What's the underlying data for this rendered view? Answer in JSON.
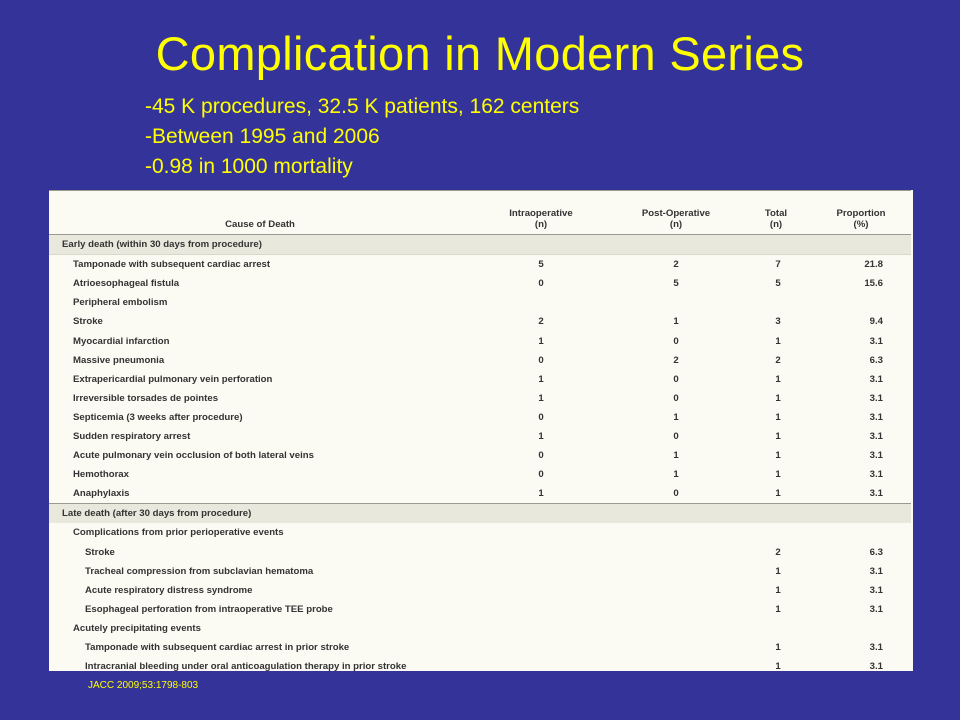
{
  "title": "Complication in Modern Series",
  "bullets": [
    "-45 K procedures, 32.5 K patients, 162 centers",
    "-Between 1995 and 2006",
    "-0.98 in 1000 mortality"
  ],
  "table": {
    "headers": {
      "cause": "Cause of Death",
      "intra": "Intraoperative",
      "intra_unit": "(n)",
      "post": "Post-Operative",
      "post_unit": "(n)",
      "total": "Total",
      "total_unit": "(n)",
      "prop": "Proportion",
      "prop_unit": "(%)"
    },
    "early_section": "Early death (within 30 days from procedure)",
    "early_rows": [
      {
        "label": "Tamponade with subsequent cardiac arrest",
        "intra": "5",
        "post": "2",
        "total": "7",
        "prop": "21.8"
      },
      {
        "label": "Atrioesophageal fistula",
        "intra": "0",
        "post": "5",
        "total": "5",
        "prop": "15.6"
      },
      {
        "label": "Peripheral embolism",
        "intra": "",
        "post": "",
        "total": "",
        "prop": ""
      },
      {
        "label": "Stroke",
        "intra": "2",
        "post": "1",
        "total": "3",
        "prop": "9.4"
      },
      {
        "label": "Myocardial infarction",
        "intra": "1",
        "post": "0",
        "total": "1",
        "prop": "3.1"
      },
      {
        "label": "Massive pneumonia",
        "intra": "0",
        "post": "2",
        "total": "2",
        "prop": "6.3"
      },
      {
        "label": "Extrapericardial pulmonary vein perforation",
        "intra": "1",
        "post": "0",
        "total": "1",
        "prop": "3.1"
      },
      {
        "label": "Irreversible torsades de pointes",
        "intra": "1",
        "post": "0",
        "total": "1",
        "prop": "3.1"
      },
      {
        "label": "Septicemia (3 weeks after procedure)",
        "intra": "0",
        "post": "1",
        "total": "1",
        "prop": "3.1"
      },
      {
        "label": "Sudden respiratory arrest",
        "intra": "1",
        "post": "0",
        "total": "1",
        "prop": "3.1"
      },
      {
        "label": "Acute pulmonary vein occlusion of both lateral veins",
        "intra": "0",
        "post": "1",
        "total": "1",
        "prop": "3.1"
      },
      {
        "label": "Hemothorax",
        "intra": "0",
        "post": "1",
        "total": "1",
        "prop": "3.1"
      },
      {
        "label": "Anaphylaxis",
        "intra": "1",
        "post": "0",
        "total": "1",
        "prop": "3.1"
      }
    ],
    "late_section": "Late death (after 30 days from procedure)",
    "late_rows": [
      {
        "label": "Complications from prior perioperative events",
        "indent": false,
        "total": "",
        "prop": ""
      },
      {
        "label": "Stroke",
        "indent": true,
        "total": "2",
        "prop": "6.3"
      },
      {
        "label": "Tracheal compression from subclavian hematoma",
        "indent": true,
        "total": "1",
        "prop": "3.1"
      },
      {
        "label": "Acute respiratory distress syndrome",
        "indent": true,
        "total": "1",
        "prop": "3.1"
      },
      {
        "label": "Esophageal perforation from intraoperative TEE probe",
        "indent": true,
        "total": "1",
        "prop": "3.1"
      },
      {
        "label": "Acutely precipitating events",
        "indent": false,
        "total": "",
        "prop": ""
      },
      {
        "label": "Tamponade with subsequent cardiac arrest in prior stroke",
        "indent": true,
        "total": "1",
        "prop": "3.1"
      },
      {
        "label": "Intracranial bleeding under oral anticoagulation therapy in prior stroke",
        "indent": true,
        "total": "1",
        "prop": "3.1"
      }
    ]
  },
  "citation": "JACC 2009;53:1798-803"
}
